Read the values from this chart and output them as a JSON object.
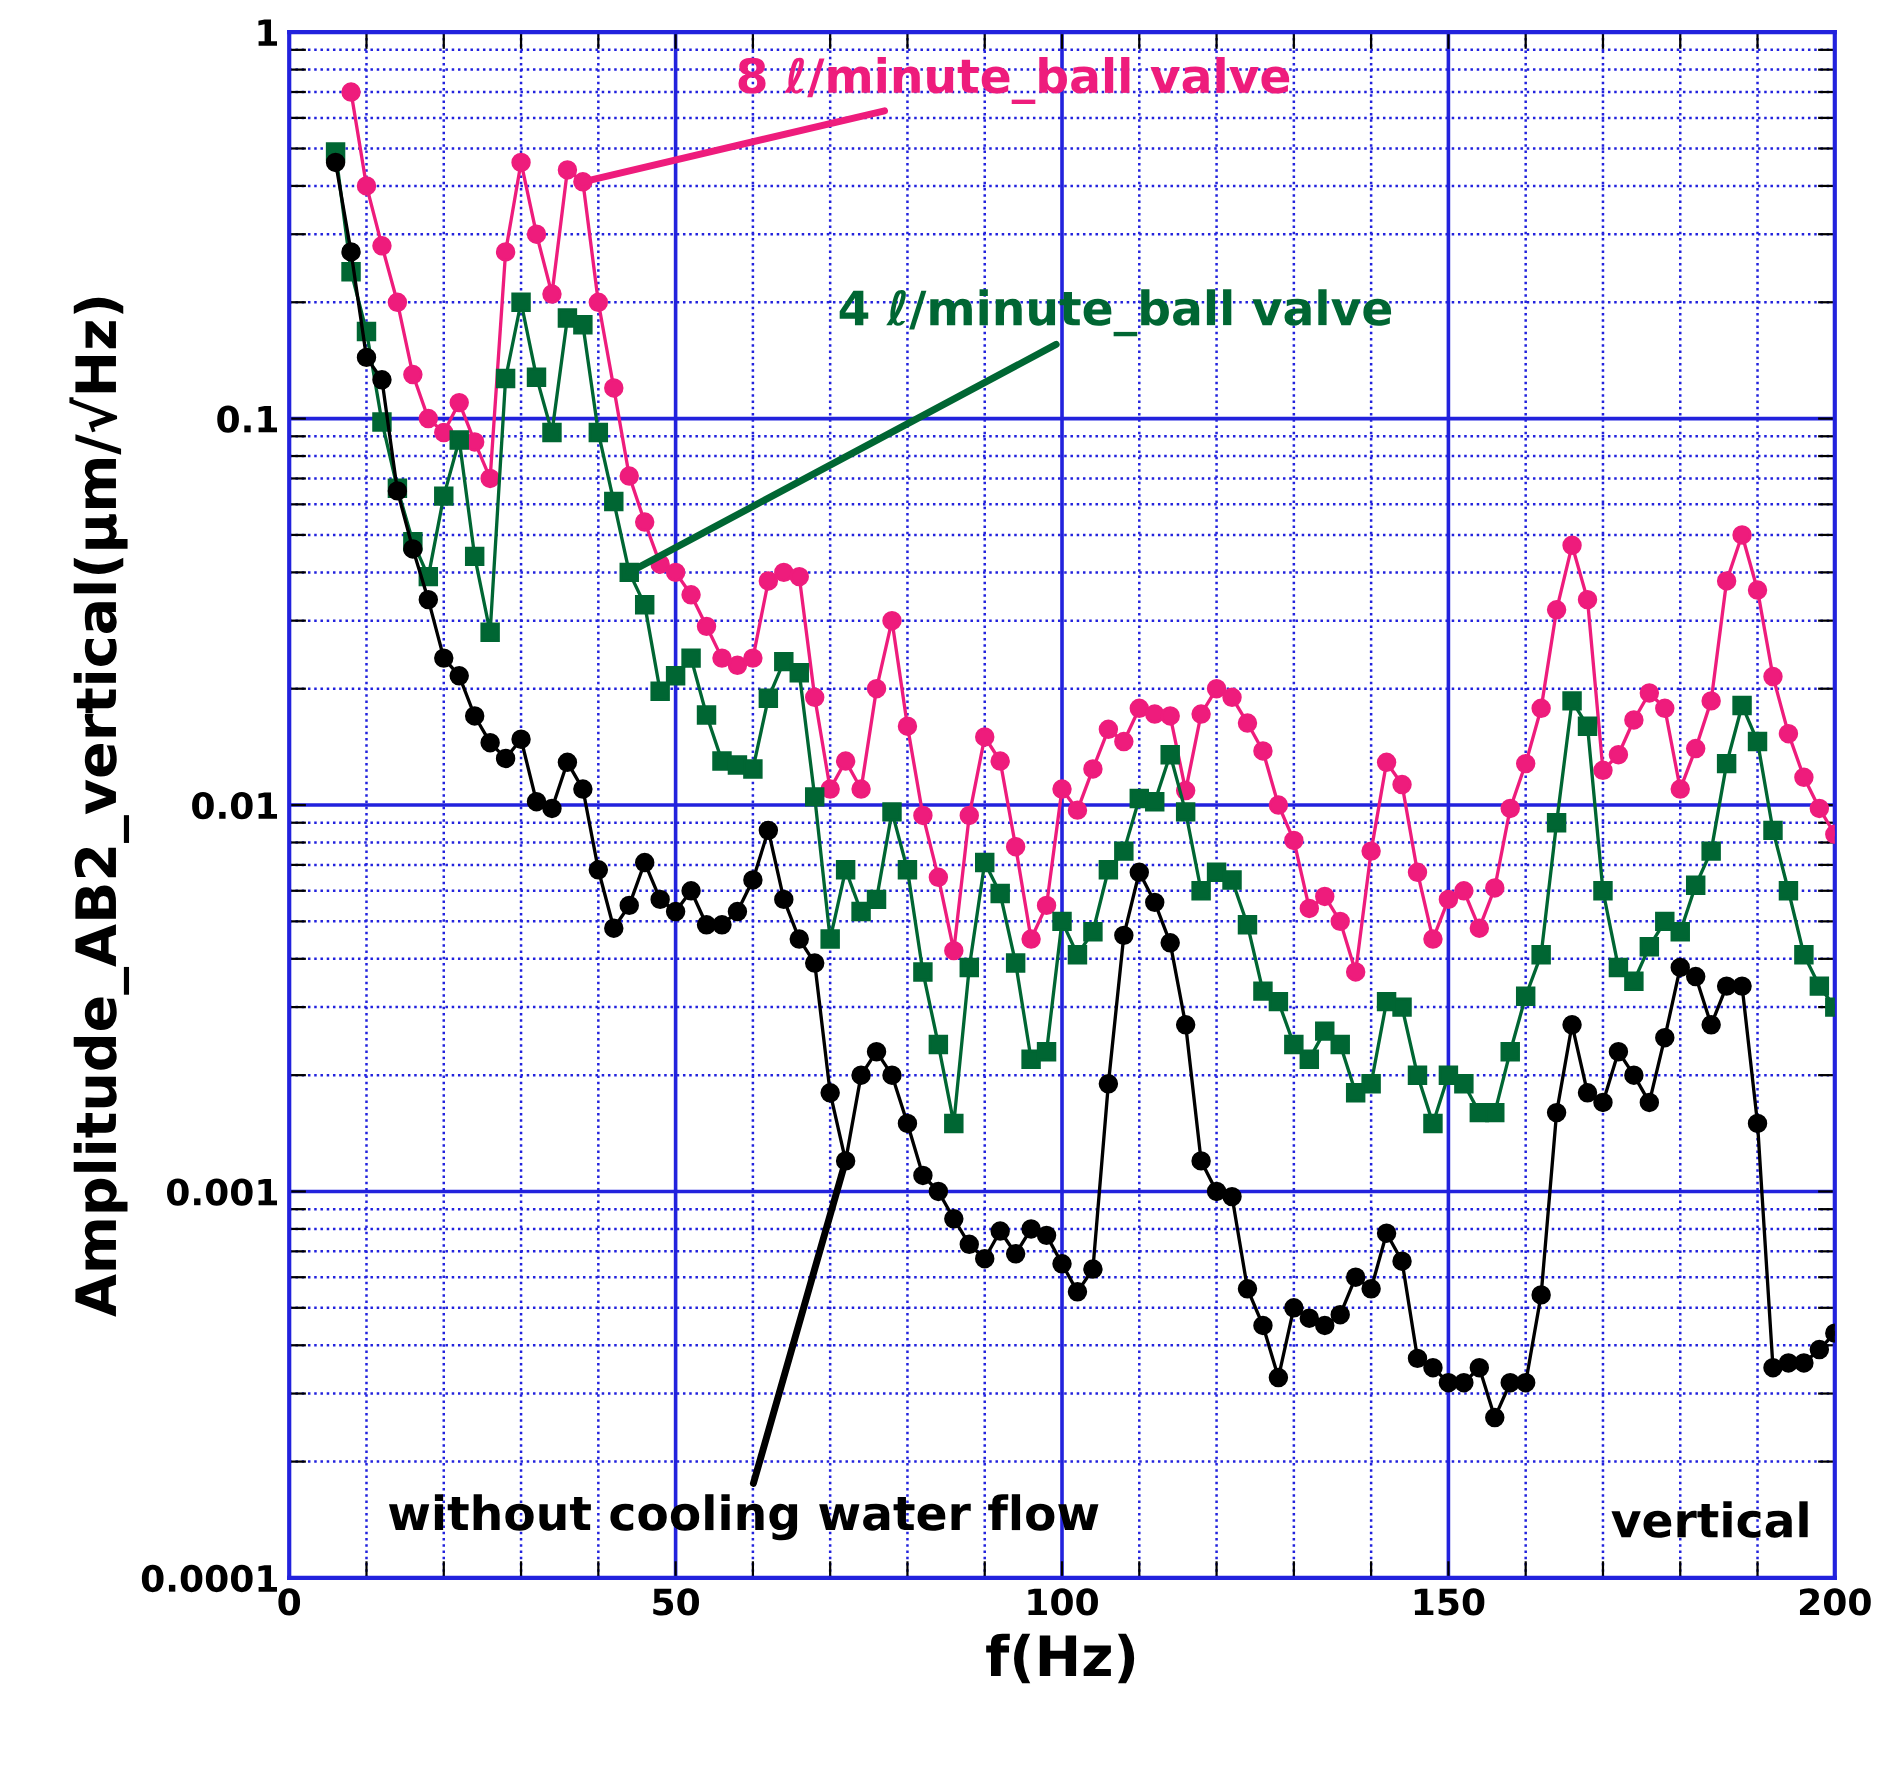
{
  "chart_data": {
    "type": "line",
    "xlabel": "f(Hz)",
    "ylabel": "Amplitude_AB2_vertical(μm/√Hz)",
    "log": "y",
    "grid": true,
    "line_style": "solid",
    "xlim": [
      0,
      200
    ],
    "ylim": [
      0.0001,
      1
    ],
    "xticks": [
      0,
      {
        "value": 10,
        "label": null
      },
      {
        "value": 20,
        "label": null
      },
      {
        "value": 30,
        "label": null
      },
      {
        "value": 40,
        "label": null
      },
      50,
      {
        "value": 60,
        "label": null
      },
      {
        "value": 70,
        "label": null
      },
      {
        "value": 80,
        "label": null
      },
      {
        "value": 90,
        "label": null
      },
      100,
      {
        "value": 110,
        "label": null
      },
      {
        "value": 120,
        "label": null
      },
      {
        "value": 130,
        "label": null
      },
      {
        "value": 140,
        "label": null
      },
      150,
      {
        "value": 160,
        "label": null
      },
      {
        "value": 170,
        "label": null
      },
      {
        "value": 180,
        "label": null
      },
      {
        "value": 190,
        "label": null
      },
      200
    ],
    "yticks": [
      0.0001,
      {
        "value": 0.0002,
        "label": null
      },
      {
        "value": 0.0003,
        "label": null
      },
      {
        "value": 0.0004,
        "label": null
      },
      {
        "value": 0.0005,
        "label": null
      },
      {
        "value": 0.0006,
        "label": null
      },
      {
        "value": 0.0007,
        "label": null
      },
      {
        "value": 0.0008,
        "label": null
      },
      {
        "value": 0.0009,
        "label": null
      },
      0.001,
      {
        "value": 0.002,
        "label": null
      },
      {
        "value": 0.003,
        "label": null
      },
      {
        "value": 0.004,
        "label": null
      },
      {
        "value": 0.005,
        "label": null
      },
      {
        "value": 0.006,
        "label": null
      },
      {
        "value": 0.007,
        "label": null
      },
      {
        "value": 0.008,
        "label": null
      },
      {
        "value": 0.009,
        "label": null
      },
      0.01,
      {
        "value": 0.02,
        "label": null
      },
      {
        "value": 0.03,
        "label": null
      },
      {
        "value": 0.04,
        "label": null
      },
      {
        "value": 0.05,
        "label": null
      },
      {
        "value": 0.06,
        "label": null
      },
      {
        "value": 0.07,
        "label": null
      },
      {
        "value": 0.08,
        "label": null
      },
      {
        "value": 0.09,
        "label": null
      },
      0.1,
      {
        "value": 0.2,
        "label": null
      },
      {
        "value": 0.3,
        "label": null
      },
      {
        "value": 0.4,
        "label": null
      },
      {
        "value": 0.5,
        "label": null
      },
      {
        "value": 0.6,
        "label": null
      },
      {
        "value": 0.7,
        "label": null
      },
      {
        "value": 0.8,
        "label": null
      },
      {
        "value": 0.9,
        "label": null
      },
      1
    ],
    "series": [
      {
        "color": "#ee1c7c",
        "marker": "circle",
        "x": [
          8,
          10,
          12,
          14,
          16,
          18,
          20,
          22,
          24,
          26,
          28,
          30,
          32,
          34,
          36,
          38,
          40,
          42,
          44,
          46,
          48,
          50,
          52,
          54,
          56,
          58,
          60,
          62,
          64,
          66,
          68,
          70,
          72,
          74,
          76,
          78,
          80,
          82,
          84,
          86,
          88,
          90,
          92,
          94,
          96,
          98,
          100,
          102,
          104,
          106,
          108,
          110,
          112,
          114,
          116,
          118,
          120,
          122,
          124,
          126,
          128,
          130,
          132,
          134,
          136,
          138,
          140,
          142,
          144,
          146,
          148,
          150,
          152,
          154,
          156,
          158,
          160,
          162,
          164,
          166,
          168,
          170,
          172,
          174,
          176,
          178,
          180,
          182,
          184,
          186,
          188,
          190,
          192,
          194,
          196,
          198,
          200
        ],
        "values": [
          0.7,
          0.4,
          0.28,
          0.2,
          0.13,
          0.1,
          0.092,
          0.11,
          0.087,
          0.07,
          0.27,
          0.46,
          0.3,
          0.21,
          0.44,
          0.41,
          0.2,
          0.12,
          0.071,
          0.054,
          0.042,
          0.04,
          0.035,
          0.029,
          0.024,
          0.023,
          0.024,
          0.038,
          0.04,
          0.039,
          0.019,
          0.011,
          0.013,
          0.011,
          0.02,
          0.03,
          0.016,
          0.0094,
          0.0065,
          0.0042,
          0.0094,
          0.015,
          0.013,
          0.0078,
          0.0045,
          0.0055,
          0.011,
          0.0097,
          0.0124,
          0.0157,
          0.0146,
          0.0178,
          0.0172,
          0.017,
          0.0109,
          0.0172,
          0.02,
          0.019,
          0.0163,
          0.0138,
          0.01,
          0.0081,
          0.0054,
          0.0058,
          0.005,
          0.0037,
          0.0076,
          0.0129,
          0.0113,
          0.0067,
          0.0045,
          0.0057,
          0.006,
          0.0048,
          0.0061,
          0.0098,
          0.0128,
          0.0178,
          0.032,
          0.047,
          0.034,
          0.0123,
          0.0135,
          0.0166,
          0.0195,
          0.0178,
          0.011,
          0.014,
          0.0186,
          0.038,
          0.05,
          0.036,
          0.0215,
          0.0153,
          0.0118,
          0.0098,
          0.0084
        ]
      },
      {
        "color": "#006633",
        "marker": "square",
        "x": [
          6,
          8,
          10,
          12,
          14,
          16,
          18,
          20,
          22,
          24,
          26,
          28,
          30,
          32,
          34,
          36,
          38,
          40,
          42,
          44,
          46,
          48,
          50,
          52,
          54,
          56,
          58,
          60,
          62,
          64,
          66,
          68,
          70,
          72,
          74,
          76,
          78,
          80,
          82,
          84,
          86,
          88,
          90,
          92,
          94,
          96,
          98,
          100,
          102,
          104,
          106,
          108,
          110,
          112,
          114,
          116,
          118,
          120,
          122,
          124,
          126,
          128,
          130,
          132,
          134,
          136,
          138,
          140,
          142,
          144,
          146,
          148,
          150,
          152,
          154,
          156,
          158,
          160,
          162,
          164,
          166,
          168,
          170,
          172,
          174,
          176,
          178,
          180,
          182,
          184,
          186,
          188,
          190,
          192,
          194,
          196,
          198,
          200
        ],
        "values": [
          0.49,
          0.24,
          0.168,
          0.098,
          0.066,
          0.048,
          0.039,
          0.063,
          0.088,
          0.044,
          0.028,
          0.127,
          0.2,
          0.128,
          0.092,
          0.182,
          0.175,
          0.092,
          0.061,
          0.04,
          0.033,
          0.0197,
          0.0216,
          0.024,
          0.0171,
          0.013,
          0.0127,
          0.0124,
          0.0189,
          0.0235,
          0.022,
          0.0105,
          0.0045,
          0.0068,
          0.0053,
          0.0057,
          0.0096,
          0.0068,
          0.0037,
          0.0024,
          0.0015,
          0.0038,
          0.0071,
          0.0059,
          0.0039,
          0.0022,
          0.0023,
          0.005,
          0.0041,
          0.0047,
          0.0068,
          0.0076,
          0.0104,
          0.0102,
          0.0135,
          0.0096,
          0.006,
          0.0067,
          0.0064,
          0.0049,
          0.0033,
          0.0031,
          0.0024,
          0.0022,
          0.0026,
          0.0024,
          0.0018,
          0.0019,
          0.0031,
          0.003,
          0.002,
          0.0015,
          0.002,
          0.0019,
          0.0016,
          0.0016,
          0.0023,
          0.0032,
          0.0041,
          0.009,
          0.0186,
          0.016,
          0.006,
          0.0038,
          0.0035,
          0.0043,
          0.005,
          0.0047,
          0.0062,
          0.0076,
          0.0128,
          0.0181,
          0.0146,
          0.0086,
          0.006,
          0.0041,
          0.0034,
          0.003
        ]
      },
      {
        "color": "#000000",
        "marker": "circle",
        "x": [
          6,
          8,
          10,
          12,
          14,
          16,
          18,
          20,
          22,
          24,
          26,
          28,
          30,
          32,
          34,
          36,
          38,
          40,
          42,
          44,
          46,
          48,
          50,
          52,
          54,
          56,
          58,
          60,
          62,
          64,
          66,
          68,
          70,
          72,
          74,
          76,
          78,
          80,
          82,
          84,
          86,
          88,
          90,
          92,
          94,
          96,
          98,
          100,
          102,
          104,
          106,
          108,
          110,
          112,
          114,
          116,
          118,
          120,
          122,
          124,
          126,
          128,
          130,
          132,
          134,
          136,
          138,
          140,
          142,
          144,
          146,
          148,
          150,
          152,
          154,
          156,
          158,
          160,
          162,
          164,
          166,
          168,
          170,
          172,
          174,
          176,
          178,
          180,
          182,
          184,
          186,
          188,
          190,
          192,
          194,
          196,
          198,
          200
        ],
        "values": [
          0.46,
          0.27,
          0.144,
          0.126,
          0.065,
          0.046,
          0.034,
          0.024,
          0.0216,
          0.017,
          0.0145,
          0.0132,
          0.0148,
          0.0102,
          0.0098,
          0.0129,
          0.011,
          0.0068,
          0.0048,
          0.0055,
          0.0071,
          0.0057,
          0.0053,
          0.006,
          0.0049,
          0.0049,
          0.0053,
          0.0064,
          0.0086,
          0.0057,
          0.0045,
          0.0039,
          0.0018,
          0.0012,
          0.002,
          0.0023,
          0.002,
          0.0015,
          0.0011,
          0.001,
          0.00085,
          0.00073,
          0.00067,
          0.00079,
          0.00069,
          0.0008,
          0.00077,
          0.00065,
          0.00055,
          0.00063,
          0.0019,
          0.0046,
          0.0067,
          0.0056,
          0.0044,
          0.0027,
          0.0012,
          0.001,
          0.00097,
          0.00056,
          0.00045,
          0.00033,
          0.0005,
          0.00047,
          0.00045,
          0.00048,
          0.0006,
          0.00056,
          0.00078,
          0.00066,
          0.00037,
          0.00035,
          0.00032,
          0.00032,
          0.00035,
          0.00026,
          0.00032,
          0.00032,
          0.00054,
          0.0016,
          0.0027,
          0.0018,
          0.0017,
          0.0023,
          0.002,
          0.0017,
          0.0025,
          0.0038,
          0.0036,
          0.0027,
          0.0034,
          0.0034,
          0.0015,
          0.00035,
          0.00036,
          0.00036,
          0.00039,
          0.00043
        ]
      }
    ],
    "annotations": [
      {
        "text": "8 ℓ/minute_ball valve",
        "x": 38,
        "y": 0.41
      },
      {
        "text": "4 ℓ/minute_ball valve",
        "x": 44,
        "y": 0.04
      },
      {
        "text": "without cooling water flow",
        "x": 72,
        "y": 0.0012
      },
      "vertical"
    ]
  }
}
